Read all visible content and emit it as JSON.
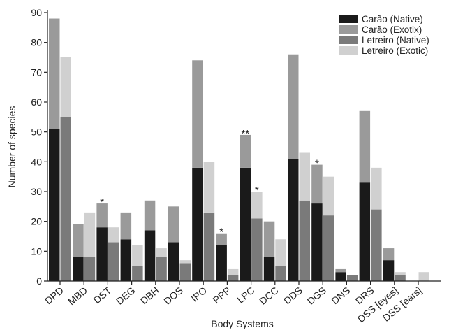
{
  "chart_data": {
    "type": "bar",
    "layout": "stacked-grouped",
    "xlabel": "Body Systems",
    "ylabel": "Number of species",
    "ylim": [
      0,
      90
    ],
    "yticks": [
      0,
      10,
      20,
      30,
      40,
      50,
      60,
      70,
      80,
      90
    ],
    "grid": false,
    "legend_position": "top-right",
    "categories": [
      "DPD",
      "MBD",
      "DST",
      "DEG",
      "DBH",
      "DOS",
      "IPO",
      "PPP",
      "LPC",
      "DCC",
      "DDS",
      "DGS",
      "DNS",
      "DRS",
      "DSS [eyes]",
      "DSS [ears]"
    ],
    "groups": [
      {
        "name": "Carão",
        "series": [
          {
            "name": "Carão (Native)",
            "color": "#1a1a1a",
            "values": [
              51,
              8,
              18,
              14,
              17,
              13,
              38,
              12,
              38,
              8,
              41,
              26,
              3,
              33,
              7,
              0
            ]
          },
          {
            "name": "Carão (Exotix)",
            "color": "#9a9a9a",
            "values": [
              37,
              11,
              8,
              9,
              10,
              12,
              36,
              4,
              11,
              12,
              35,
              13,
              1,
              24,
              4,
              0
            ]
          }
        ],
        "totals": [
          88,
          19,
          26,
          23,
          27,
          25,
          74,
          16,
          49,
          20,
          76,
          39,
          4,
          57,
          11,
          0
        ]
      },
      {
        "name": "Letreiro",
        "series": [
          {
            "name": "Letreiro (Native)",
            "color": "#7a7a7a",
            "values": [
              55,
              8,
              13,
              5,
              8,
              6,
              23,
              2,
              21,
              5,
              27,
              22,
              2,
              24,
              2,
              0
            ]
          },
          {
            "name": "Letreiro (Exotic)",
            "color": "#d0d0d0",
            "values": [
              20,
              15,
              5,
              7,
              3,
              1,
              17,
              2,
              9,
              9,
              16,
              13,
              0,
              14,
              1,
              3
            ]
          }
        ],
        "totals": [
          75,
          23,
          18,
          12,
          11,
          7,
          40,
          4,
          30,
          14,
          43,
          35,
          2,
          38,
          3,
          3
        ]
      }
    ],
    "annotations": [
      {
        "category": "DST",
        "group": "Carão",
        "text": "*"
      },
      {
        "category": "PPP",
        "group": "Carão",
        "text": "*"
      },
      {
        "category": "LPC",
        "group": "Carão",
        "text": "**"
      },
      {
        "category": "LPC",
        "group": "Letreiro",
        "text": "*"
      },
      {
        "category": "DGS",
        "group": "Carão",
        "text": "*"
      }
    ]
  }
}
